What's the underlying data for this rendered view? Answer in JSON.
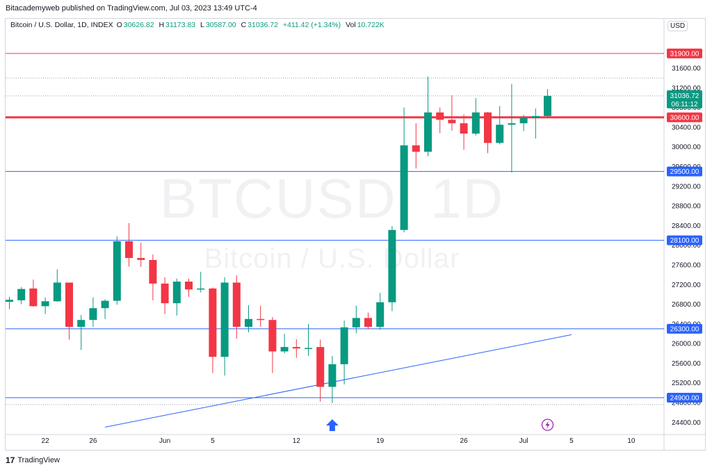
{
  "publish_line": "Bitacademyweb published on TradingView.com, Jul 03, 2023 13:49 UTC-4",
  "footer_brand": "TradingView",
  "currency_label": "USD",
  "watermark": {
    "symbol": "BTCUSD, 1D",
    "name": "Bitcoin / U.S. Dollar"
  },
  "legend": {
    "title": "Bitcoin / U.S. Dollar, 1D, INDEX",
    "o_label": "O",
    "o": "30626.82",
    "h_label": "H",
    "h": "31173.83",
    "l_label": "L",
    "l": "30587.00",
    "c_label": "C",
    "c": "31036.72",
    "change": "+411.42 (+1.34%)",
    "vol_label": "Vol",
    "vol": "10.722K"
  },
  "chart_data": {
    "type": "candlestick",
    "title": "Bitcoin / U.S. Dollar, 1D, INDEX",
    "ylim": [
      24150,
      32350
    ],
    "y_ticks": [
      24400,
      24800,
      25200,
      25600,
      26000,
      26400,
      26800,
      27200,
      27600,
      28000,
      28400,
      28800,
      29200,
      29600,
      30000,
      30400,
      30800,
      31200,
      31600
    ],
    "x_range": [
      "2023-05-19",
      "2023-07-12"
    ],
    "x_ticks": [
      {
        "date": "2023-05-22",
        "label": "22"
      },
      {
        "date": "2023-05-26",
        "label": "26"
      },
      {
        "date": "2023-06-01",
        "label": "Jun"
      },
      {
        "date": "2023-06-05",
        "label": "5"
      },
      {
        "date": "2023-06-12",
        "label": "12"
      },
      {
        "date": "2023-06-19",
        "label": "19"
      },
      {
        "date": "2023-06-26",
        "label": "26"
      },
      {
        "date": "2023-07-01",
        "label": "Jul"
      },
      {
        "date": "2023-07-05",
        "label": "5"
      },
      {
        "date": "2023-07-10",
        "label": "10"
      }
    ],
    "candles": [
      {
        "date": "2023-05-19",
        "o": 26850,
        "h": 26950,
        "l": 26700,
        "c": 26890
      },
      {
        "date": "2023-05-20",
        "o": 26880,
        "h": 27150,
        "l": 26800,
        "c": 27110
      },
      {
        "date": "2023-05-21",
        "o": 27120,
        "h": 27300,
        "l": 26750,
        "c": 26760
      },
      {
        "date": "2023-05-22",
        "o": 26760,
        "h": 26940,
        "l": 26600,
        "c": 26860
      },
      {
        "date": "2023-05-23",
        "o": 26860,
        "h": 27510,
        "l": 26850,
        "c": 27240
      },
      {
        "date": "2023-05-24",
        "o": 27240,
        "h": 27240,
        "l": 26080,
        "c": 26340
      },
      {
        "date": "2023-05-25",
        "o": 26340,
        "h": 26580,
        "l": 25870,
        "c": 26480
      },
      {
        "date": "2023-05-26",
        "o": 26480,
        "h": 26940,
        "l": 26340,
        "c": 26720
      },
      {
        "date": "2023-05-27",
        "o": 26720,
        "h": 26900,
        "l": 26500,
        "c": 26870
      },
      {
        "date": "2023-05-28",
        "o": 26870,
        "h": 28180,
        "l": 26790,
        "c": 28080
      },
      {
        "date": "2023-05-29",
        "o": 28080,
        "h": 28450,
        "l": 27560,
        "c": 27740
      },
      {
        "date": "2023-05-30",
        "o": 27740,
        "h": 28050,
        "l": 27560,
        "c": 27700
      },
      {
        "date": "2023-05-31",
        "o": 27700,
        "h": 27810,
        "l": 26880,
        "c": 27220
      },
      {
        "date": "2023-06-01",
        "o": 27220,
        "h": 27350,
        "l": 26600,
        "c": 26820
      },
      {
        "date": "2023-06-02",
        "o": 26820,
        "h": 27320,
        "l": 26570,
        "c": 27260
      },
      {
        "date": "2023-06-03",
        "o": 27260,
        "h": 27320,
        "l": 26950,
        "c": 27100
      },
      {
        "date": "2023-06-04",
        "o": 27100,
        "h": 27460,
        "l": 27040,
        "c": 27120
      },
      {
        "date": "2023-06-05",
        "o": 27120,
        "h": 27140,
        "l": 25400,
        "c": 25730
      },
      {
        "date": "2023-06-06",
        "o": 25730,
        "h": 27350,
        "l": 25350,
        "c": 27240
      },
      {
        "date": "2023-06-07",
        "o": 27240,
        "h": 27390,
        "l": 26100,
        "c": 26340
      },
      {
        "date": "2023-06-08",
        "o": 26340,
        "h": 26780,
        "l": 26230,
        "c": 26500
      },
      {
        "date": "2023-06-09",
        "o": 26500,
        "h": 26770,
        "l": 26340,
        "c": 26480
      },
      {
        "date": "2023-06-10",
        "o": 26480,
        "h": 26540,
        "l": 25400,
        "c": 25840
      },
      {
        "date": "2023-06-11",
        "o": 25840,
        "h": 26200,
        "l": 25800,
        "c": 25930
      },
      {
        "date": "2023-06-12",
        "o": 25930,
        "h": 26090,
        "l": 25710,
        "c": 25900
      },
      {
        "date": "2023-06-13",
        "o": 25900,
        "h": 26400,
        "l": 25750,
        "c": 25910
      },
      {
        "date": "2023-06-14",
        "o": 25930,
        "h": 26080,
        "l": 24820,
        "c": 25120
      },
      {
        "date": "2023-06-15",
        "o": 25120,
        "h": 25750,
        "l": 24790,
        "c": 25580
      },
      {
        "date": "2023-06-16",
        "o": 25580,
        "h": 26470,
        "l": 25170,
        "c": 26330
      },
      {
        "date": "2023-06-17",
        "o": 26330,
        "h": 26770,
        "l": 26210,
        "c": 26520
      },
      {
        "date": "2023-06-18",
        "o": 26520,
        "h": 26630,
        "l": 26290,
        "c": 26340
      },
      {
        "date": "2023-06-19",
        "o": 26340,
        "h": 27030,
        "l": 26280,
        "c": 26840
      },
      {
        "date": "2023-06-20",
        "o": 26840,
        "h": 28390,
        "l": 26660,
        "c": 28310
      },
      {
        "date": "2023-06-21",
        "o": 28310,
        "h": 30800,
        "l": 28260,
        "c": 30030
      },
      {
        "date": "2023-06-22",
        "o": 30030,
        "h": 30480,
        "l": 29560,
        "c": 29900
      },
      {
        "date": "2023-06-23",
        "o": 29900,
        "h": 31430,
        "l": 29810,
        "c": 30700
      },
      {
        "date": "2023-06-24",
        "o": 30700,
        "h": 30800,
        "l": 30280,
        "c": 30550
      },
      {
        "date": "2023-06-25",
        "o": 30550,
        "h": 31050,
        "l": 30330,
        "c": 30480
      },
      {
        "date": "2023-06-26",
        "o": 30480,
        "h": 30660,
        "l": 29940,
        "c": 30270
      },
      {
        "date": "2023-06-27",
        "o": 30270,
        "h": 30990,
        "l": 30230,
        "c": 30700
      },
      {
        "date": "2023-06-28",
        "o": 30700,
        "h": 30710,
        "l": 29870,
        "c": 30080
      },
      {
        "date": "2023-06-29",
        "o": 30080,
        "h": 30830,
        "l": 30050,
        "c": 30450
      },
      {
        "date": "2023-06-30",
        "o": 30450,
        "h": 31280,
        "l": 29480,
        "c": 30480
      },
      {
        "date": "2023-07-01",
        "o": 30480,
        "h": 30650,
        "l": 30320,
        "c": 30590
      },
      {
        "date": "2023-07-02",
        "o": 30590,
        "h": 30780,
        "l": 30170,
        "c": 30627
      },
      {
        "date": "2023-07-03",
        "o": 30627,
        "h": 31174,
        "l": 30587,
        "c": 31037
      }
    ],
    "horizontal_levels": [
      {
        "price": 31900,
        "label": "31900.00",
        "color": "#f23645",
        "weight": "thin"
      },
      {
        "price": 30600,
        "label": "30600.00",
        "color": "#f23645",
        "weight": "thick"
      },
      {
        "price": 29500,
        "label": "29500.00",
        "color": "#2962ff",
        "weight": "thin"
      },
      {
        "price": 28100,
        "label": "28100.00",
        "color": "#2962ff",
        "weight": "thin"
      },
      {
        "price": 26300,
        "label": "26300.00",
        "color": "#2962ff",
        "weight": "thin"
      },
      {
        "price": 24900,
        "label": "24900.00",
        "color": "#2962ff",
        "weight": "thin"
      }
    ],
    "dotted_levels": [
      31400,
      31037,
      24760
    ],
    "trendline": {
      "from": {
        "date": "2023-05-27",
        "price": 24300
      },
      "to": {
        "date": "2023-07-05",
        "price": 26180
      },
      "color": "#2962ff"
    },
    "price_badge": {
      "price": 31036.72,
      "label": "31036.72",
      "countdown": "06:11:12",
      "color": "#089981"
    },
    "colors": {
      "up": "#089981",
      "down": "#f23645"
    },
    "markers": [
      {
        "type": "arrow-up",
        "date": "2023-06-15",
        "color": "#2962ff"
      },
      {
        "type": "lightning",
        "date": "2023-07-03",
        "color": "#9c27b0"
      }
    ]
  }
}
